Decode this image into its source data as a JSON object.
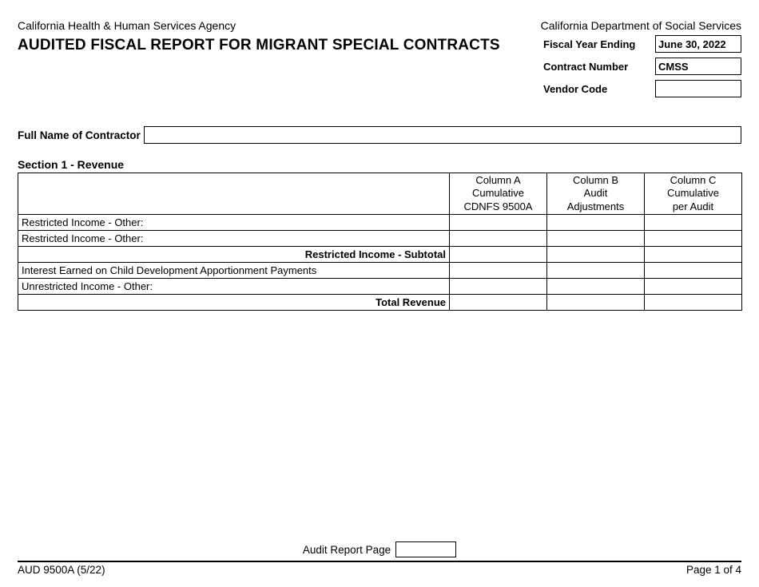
{
  "header": {
    "agency_left": "California Health & Human Services Agency",
    "agency_right": "California Department of Social Services",
    "title": "AUDITED FISCAL REPORT FOR MIGRANT SPECIAL CONTRACTS"
  },
  "meta": {
    "fiscal_year_label": "Fiscal Year Ending",
    "fiscal_year_value": "June 30, 2022",
    "contract_number_label": "Contract Number",
    "contract_number_value": "CMSS",
    "vendor_code_label": "Vendor Code",
    "vendor_code_value": ""
  },
  "contractor": {
    "label": "Full Name of Contractor",
    "value": ""
  },
  "section1": {
    "title": "Section 1 - Revenue",
    "columns": {
      "a_line1": "Column A",
      "a_line2": "Cumulative",
      "a_line3": "CDNFS 9500A",
      "b_line1": "Column B",
      "b_line2": "Audit",
      "b_line3": "Adjustments",
      "c_line1": "Column C",
      "c_line2": "Cumulative",
      "c_line3": "per Audit"
    },
    "rows": [
      {
        "label": "Restricted Income - Other:",
        "bold": false,
        "a": "",
        "b": "",
        "c": ""
      },
      {
        "label": "Restricted Income - Other:",
        "bold": false,
        "a": "",
        "b": "",
        "c": ""
      },
      {
        "label": "Restricted Income - Subtotal",
        "bold": true,
        "a": "",
        "b": "",
        "c": ""
      },
      {
        "label": "Interest Earned on Child Development Apportionment Payments",
        "bold": false,
        "a": "",
        "b": "",
        "c": ""
      },
      {
        "label": "Unrestricted Income - Other:",
        "bold": false,
        "a": "",
        "b": "",
        "c": ""
      },
      {
        "label": "Total Revenue",
        "bold": true,
        "a": "",
        "b": "",
        "c": ""
      }
    ]
  },
  "footer": {
    "audit_page_label": "Audit Report Page",
    "audit_page_value": "",
    "form_id": "AUD 9500A (5/22)",
    "page_indicator": "Page 1 of 4"
  }
}
